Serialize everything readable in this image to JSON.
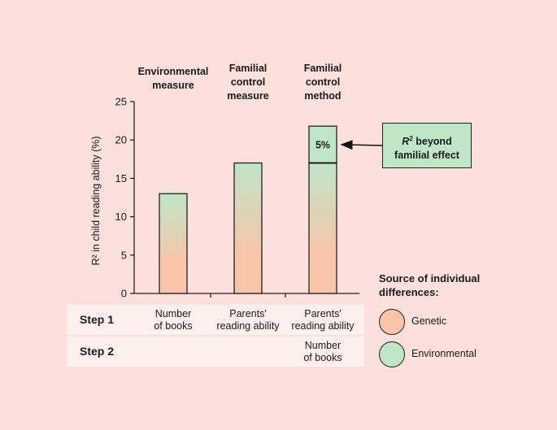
{
  "chart_data": {
    "type": "bar",
    "ylabel": "R² in child reading ability (%)",
    "ylim": [
      0,
      25
    ],
    "yticks": [
      0,
      5,
      10,
      15,
      20,
      25
    ],
    "categories": [
      {
        "line1": "Environmental",
        "line2": "measure",
        "line3": ""
      },
      {
        "line1": "Familial",
        "line2": "control",
        "line3": "measure"
      },
      {
        "line1": "Familial",
        "line2": "control",
        "line3": "method"
      }
    ],
    "bars": [
      {
        "total": 13.0,
        "segments": [
          {
            "value": 13.0,
            "label": ""
          }
        ]
      },
      {
        "total": 17.0,
        "segments": [
          {
            "value": 17.0,
            "label": ""
          }
        ]
      },
      {
        "total": 21.8,
        "segments": [
          {
            "value": 17.0,
            "label": ""
          },
          {
            "value": 4.8,
            "label": "5%"
          }
        ]
      }
    ],
    "annotation": {
      "line1": "R² beyond",
      "line2": "familial effect",
      "points_to_bar": 2
    }
  },
  "steps": [
    {
      "label": "Step 1",
      "cells": [
        [
          "Number",
          "of books"
        ],
        [
          "Parents'",
          "reading ability"
        ],
        [
          "Parents'",
          "reading ability"
        ]
      ]
    },
    {
      "label": "Step 2",
      "cells": [
        [
          "",
          ""
        ],
        [
          "",
          ""
        ],
        [
          "Number",
          "of books"
        ]
      ]
    }
  ],
  "legend": {
    "title_line1": "Source of individual",
    "title_line2": "differences:",
    "items": [
      {
        "label": "Genetic",
        "color": "#f8c4aa"
      },
      {
        "label": "Environmental",
        "color": "#bfe6c7"
      }
    ]
  },
  "colors": {
    "background": "#fbe0dc",
    "green": "#bfe6c7",
    "peach": "#f8c4aa",
    "table_row": "#fdf0ee"
  }
}
